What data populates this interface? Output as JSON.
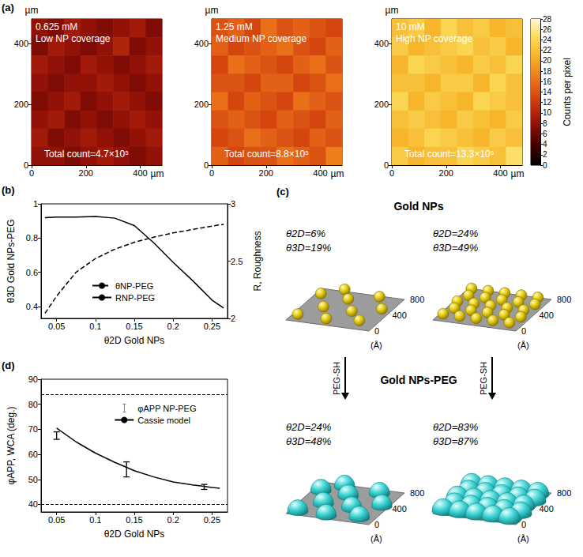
{
  "chart_data": [
    {
      "type": "heatmap",
      "panel": "(a)",
      "title": "0.625 mM",
      "subtitle": "Low NP coverage",
      "annotations": [
        "Total count=4.7×10⁵"
      ],
      "xlabel": "µm",
      "ylabel": "µm",
      "xlim": [
        0,
        480
      ],
      "ylim": [
        0,
        480
      ],
      "xticks": [
        0,
        200,
        400
      ],
      "yticks": [
        0,
        200,
        400
      ],
      "cells": [
        [
          8,
          7,
          9,
          8,
          7,
          8,
          9,
          7
        ],
        [
          7,
          9,
          8,
          7,
          8,
          10,
          7,
          8
        ],
        [
          9,
          8,
          7,
          9,
          8,
          7,
          8,
          9
        ],
        [
          8,
          7,
          8,
          8,
          9,
          8,
          7,
          8
        ],
        [
          7,
          8,
          9,
          7,
          8,
          9,
          8,
          7
        ],
        [
          8,
          9,
          7,
          8,
          7,
          8,
          9,
          8
        ],
        [
          9,
          7,
          8,
          9,
          8,
          7,
          8,
          9
        ],
        [
          8,
          8,
          7,
          8,
          9,
          8,
          7,
          8
        ]
      ]
    },
    {
      "type": "heatmap",
      "title": "1.25 mM",
      "subtitle": "Medium NP coverage",
      "annotations": [
        "Total count=8.8×10⁵"
      ],
      "xlabel": "µm",
      "ylabel": "µm",
      "xlim": [
        0,
        480
      ],
      "ylim": [
        0,
        480
      ],
      "xticks": [
        0,
        200,
        400
      ],
      "yticks": [
        0,
        200,
        400
      ],
      "cells": [
        [
          14,
          15,
          13,
          16,
          14,
          15,
          14,
          13
        ],
        [
          15,
          13,
          14,
          15,
          16,
          14,
          13,
          15
        ],
        [
          13,
          16,
          15,
          14,
          13,
          15,
          16,
          14
        ],
        [
          14,
          14,
          13,
          15,
          15,
          13,
          14,
          16
        ],
        [
          16,
          13,
          15,
          14,
          13,
          16,
          15,
          14
        ],
        [
          14,
          15,
          14,
          13,
          15,
          14,
          13,
          15
        ],
        [
          13,
          14,
          16,
          15,
          14,
          13,
          15,
          14
        ],
        [
          15,
          13,
          14,
          14,
          16,
          15,
          14,
          17
        ]
      ]
    },
    {
      "type": "heatmap",
      "title": "10 mM",
      "subtitle": "High NP coverage",
      "annotations": [
        "Total count=13.3×10⁵"
      ],
      "xlabel": "µm",
      "ylabel": "µm",
      "xlim": [
        0,
        480
      ],
      "ylim": [
        0,
        480
      ],
      "xticks": [
        0,
        200,
        400
      ],
      "yticks": [
        0,
        200,
        400
      ],
      "cells": [
        [
          22,
          23,
          21,
          24,
          22,
          23,
          21,
          22
        ],
        [
          23,
          21,
          22,
          23,
          24,
          22,
          23,
          21
        ],
        [
          21,
          24,
          23,
          22,
          21,
          23,
          22,
          24
        ],
        [
          22,
          22,
          21,
          23,
          23,
          21,
          24,
          22
        ],
        [
          24,
          21,
          23,
          22,
          21,
          24,
          23,
          22
        ],
        [
          22,
          23,
          22,
          21,
          23,
          22,
          21,
          23
        ],
        [
          21,
          22,
          24,
          23,
          22,
          21,
          23,
          22
        ],
        [
          23,
          21,
          22,
          22,
          24,
          23,
          22,
          25
        ]
      ]
    },
    {
      "type": "line",
      "panel": "(b)",
      "xlabel": "θ2D Gold NPs",
      "ylabel": "θ3D Gold NPs-PEG",
      "y2label": "R, Roughness",
      "xlim": [
        0.03,
        0.27
      ],
      "xticks": [
        0.05,
        0.1,
        0.15,
        0.2,
        0.25
      ],
      "ylim": [
        0.33,
        1
      ],
      "yticks": [
        0.4,
        0.6,
        0.8,
        1
      ],
      "y2lim": [
        2,
        3
      ],
      "y2ticks": [
        2,
        2.5,
        3
      ],
      "grid": false,
      "legend": "bottom",
      "x": [
        0.035,
        0.05,
        0.075,
        0.1,
        0.125,
        0.15,
        0.175,
        0.2,
        0.225,
        0.25,
        0.265
      ],
      "series": [
        {
          "name": "θNP-PEG",
          "color": "#000000",
          "line_style": "dashed",
          "values": [
            0.36,
            0.46,
            0.6,
            0.68,
            0.735,
            0.775,
            0.805,
            0.83,
            0.85,
            0.87,
            0.88
          ]
        },
        {
          "name": "RNP-PEG",
          "color": "#000000",
          "line_style": "solid",
          "axis": "y2",
          "values": [
            2.88,
            2.885,
            2.885,
            2.89,
            2.875,
            2.81,
            2.66,
            2.49,
            2.33,
            2.16,
            2.09
          ]
        }
      ]
    },
    {
      "type": "line",
      "panel": "(d)",
      "xlabel": "θ2D Gold NPs",
      "ylabel": "φAPP, WCA (deg.)",
      "xlim": [
        0.03,
        0.27
      ],
      "xticks": [
        0.05,
        0.1,
        0.15,
        0.2,
        0.25
      ],
      "ylim": [
        37,
        90
      ],
      "yticks": [
        40,
        50,
        60,
        70,
        80,
        90
      ],
      "grid": false,
      "legend": "top",
      "hlines": {
        "values": [
          84,
          40
        ],
        "line_style": "dashed",
        "color": "#000000"
      },
      "series": [
        {
          "name": "φAPP NP-PEG",
          "type": "errorbar",
          "color": "#000000",
          "x": [
            0.05,
            0.14,
            0.24
          ],
          "values": [
            67.5,
            54,
            47
          ],
          "errors": [
            1.5,
            3,
            1
          ]
        },
        {
          "name": "Cassie model",
          "type": "line",
          "color": "#000000",
          "line_style": "solid",
          "x": [
            0.05,
            0.075,
            0.1,
            0.125,
            0.15,
            0.175,
            0.2,
            0.225,
            0.25,
            0.26
          ],
          "values": [
            70.5,
            65,
            60.5,
            56.8,
            53.5,
            51,
            49,
            47.8,
            46.8,
            46.5
          ]
        }
      ]
    }
  ],
  "colorbar": {
    "label": "Counts per pixel",
    "range": [
      0,
      28
    ],
    "ticks": [
      0,
      2,
      4,
      6,
      8,
      10,
      12,
      14,
      16,
      18,
      20,
      22,
      24,
      26,
      28
    ]
  },
  "diagram": {
    "panel": "(c)",
    "title_top": "Gold NPs",
    "title_bottom": "Gold NPs-PEG",
    "arrow_label": "PEG-SH",
    "axis_ticks": [
      "0",
      "400",
      "800"
    ],
    "axis_unit": "(Å)",
    "columns": [
      {
        "top": [
          "θ2D=6%",
          "θ3D=19%"
        ],
        "bottom": [
          "θ2D=24%",
          "θ3D=48%"
        ]
      },
      {
        "top": [
          "θ2D=24%",
          "θ3D=49%"
        ],
        "bottom": [
          "θ2D=83%",
          "θ3D=87%"
        ]
      }
    ]
  }
}
